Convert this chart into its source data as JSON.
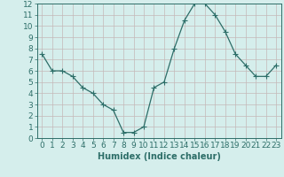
{
  "x": [
    0,
    1,
    2,
    3,
    4,
    5,
    6,
    7,
    8,
    9,
    10,
    11,
    12,
    13,
    14,
    15,
    16,
    17,
    18,
    19,
    20,
    21,
    22,
    23
  ],
  "y": [
    7.5,
    6.0,
    6.0,
    5.5,
    4.5,
    4.0,
    3.0,
    2.5,
    0.5,
    0.5,
    1.0,
    4.5,
    5.0,
    8.0,
    10.5,
    12.0,
    12.0,
    11.0,
    9.5,
    7.5,
    6.5,
    5.5,
    5.5,
    6.5
  ],
  "xlabel": "Humidex (Indice chaleur)",
  "line_color": "#2d6e68",
  "marker": "+",
  "marker_size": 4,
  "bg_color": "#d5eeec",
  "grid_color": "#c4b8b8",
  "ylim": [
    0,
    12
  ],
  "xlim": [
    -0.5,
    23.5
  ],
  "yticks": [
    0,
    1,
    2,
    3,
    4,
    5,
    6,
    7,
    8,
    9,
    10,
    11,
    12
  ],
  "xticks": [
    0,
    1,
    2,
    3,
    4,
    5,
    6,
    7,
    8,
    9,
    10,
    11,
    12,
    13,
    14,
    15,
    16,
    17,
    18,
    19,
    20,
    21,
    22,
    23
  ],
  "tick_color": "#2d6e68",
  "xlabel_fontsize": 7,
  "tick_fontsize": 6.5
}
